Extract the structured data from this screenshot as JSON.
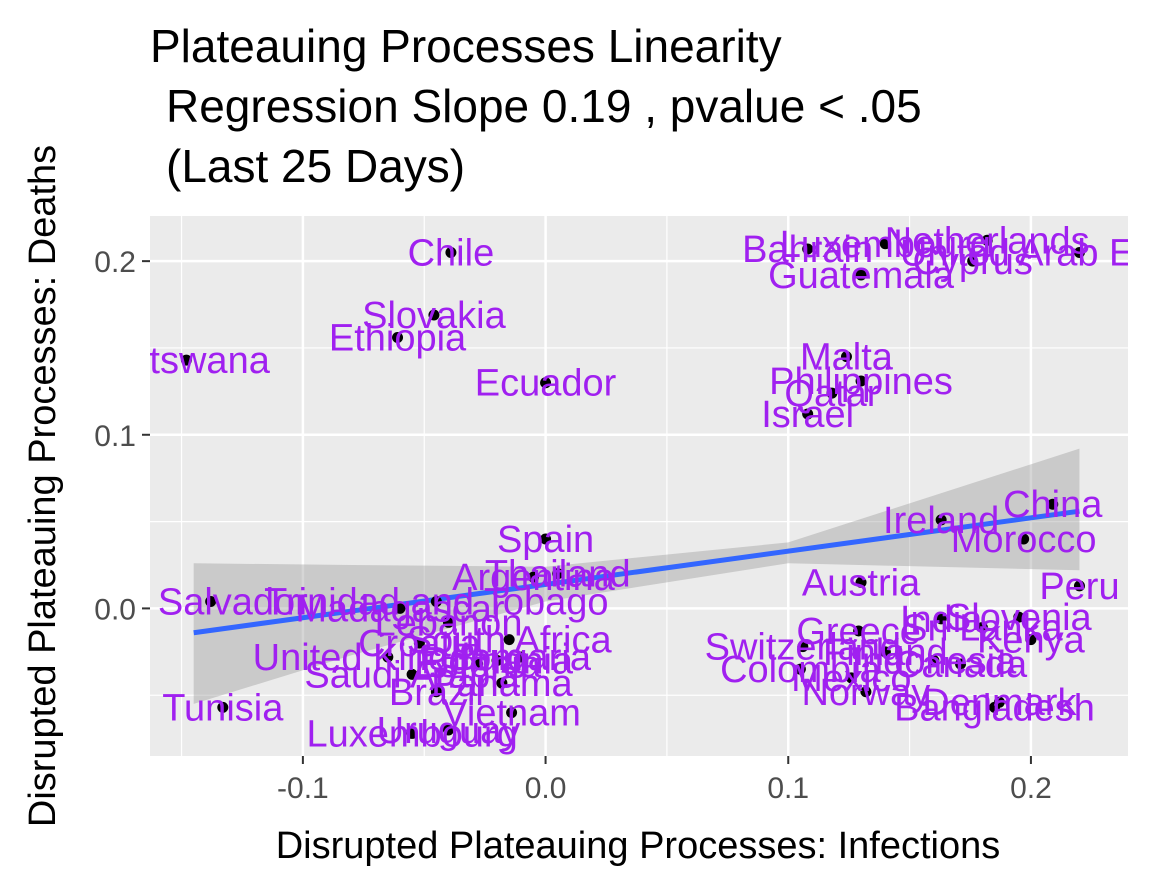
{
  "chart_data": {
    "type": "scatter",
    "title": "Plateauing Processes Linearity",
    "subtitle_lines": [
      "Regression Slope 0.19 , pvalue  < .05",
      "(Last 25 Days)"
    ],
    "xlabel": "Disrupted Plateauing Processes: Infections",
    "ylabel": "Disrupted Plateauing Processes: Deaths",
    "xlim": [
      -0.163,
      0.24
    ],
    "ylim": [
      -0.085,
      0.226
    ],
    "x_ticks": [
      -0.1,
      0.0,
      0.1,
      0.2
    ],
    "x_tick_labels": [
      "-0.1",
      "0.0",
      "0.1",
      "0.2"
    ],
    "y_ticks": [
      0.0,
      0.1,
      0.2
    ],
    "y_tick_labels": [
      "0.0",
      "0.1",
      "0.2"
    ],
    "grid": true,
    "panel_background": "#ebebeb",
    "point_color": "#000000",
    "label_color": "#a020f0",
    "regression": {
      "color": "#3366ff",
      "ci_color": "#999999",
      "points": [
        [
          -0.145,
          -0.014
        ],
        [
          0.22,
          0.056
        ]
      ],
      "ci_upper": [
        [
          -0.145,
          0.026
        ],
        [
          -0.08,
          0.025
        ],
        [
          0.0,
          0.024
        ],
        [
          0.1,
          0.038
        ],
        [
          0.22,
          0.092
        ]
      ],
      "ci_lower": [
        [
          -0.145,
          -0.055
        ],
        [
          -0.08,
          -0.027
        ],
        [
          0.0,
          0.004
        ],
        [
          0.1,
          0.026
        ],
        [
          0.22,
          0.022
        ]
      ]
    },
    "points": [
      {
        "label": "Botswana",
        "x": -0.148,
        "y": 0.143
      },
      {
        "label": "Chile",
        "x": -0.039,
        "y": 0.205
      },
      {
        "label": "Slovakia",
        "x": -0.046,
        "y": 0.169
      },
      {
        "label": "Ethiopia",
        "x": -0.061,
        "y": 0.156
      },
      {
        "label": "Ecuador",
        "x": 0.0,
        "y": 0.13
      },
      {
        "label": "Bahrain",
        "x": 0.108,
        "y": 0.207
      },
      {
        "label": "Netherlands",
        "x": 0.182,
        "y": 0.212
      },
      {
        "label": "Luxembourg",
        "x": 0.14,
        "y": 0.21
      },
      {
        "label": "United Arab Emirates",
        "x": 0.22,
        "y": 0.205
      },
      {
        "label": "Cyprus",
        "x": 0.176,
        "y": 0.2
      },
      {
        "label": "Guatemala",
        "x": 0.13,
        "y": 0.192
      },
      {
        "label": "Malta",
        "x": 0.124,
        "y": 0.145
      },
      {
        "label": "Philippines",
        "x": 0.13,
        "y": 0.131
      },
      {
        "label": "Qatar",
        "x": 0.118,
        "y": 0.124
      },
      {
        "label": "Israel",
        "x": 0.108,
        "y": 0.112
      },
      {
        "label": "China",
        "x": 0.209,
        "y": 0.06
      },
      {
        "label": "Ireland",
        "x": 0.163,
        "y": 0.051
      },
      {
        "label": "Morocco",
        "x": 0.197,
        "y": 0.04
      },
      {
        "label": "Spain",
        "x": 0.0,
        "y": 0.04
      },
      {
        "label": "Peru",
        "x": 0.22,
        "y": 0.013
      },
      {
        "label": "Austria",
        "x": 0.13,
        "y": 0.015
      },
      {
        "label": "India",
        "x": 0.163,
        "y": -0.006
      },
      {
        "label": "Slovenia",
        "x": 0.195,
        "y": -0.005
      },
      {
        "label": "Kenya",
        "x": 0.2,
        "y": -0.018
      },
      {
        "label": "Greece",
        "x": 0.129,
        "y": -0.013
      },
      {
        "label": "Sri Lanka",
        "x": 0.18,
        "y": -0.011
      },
      {
        "label": "Switzerland",
        "x": 0.106,
        "y": -0.022
      },
      {
        "label": "Finland",
        "x": 0.14,
        "y": -0.025
      },
      {
        "label": "Canada",
        "x": 0.171,
        "y": -0.032
      },
      {
        "label": "Indonesia",
        "x": 0.16,
        "y": -0.03
      },
      {
        "label": "Colombia",
        "x": 0.105,
        "y": -0.035
      },
      {
        "label": "Mexico",
        "x": 0.126,
        "y": -0.04
      },
      {
        "label": "Norway",
        "x": 0.132,
        "y": -0.048
      },
      {
        "label": "Denmark",
        "x": 0.187,
        "y": -0.054
      },
      {
        "label": "Bangladesh",
        "x": 0.185,
        "y": -0.057
      },
      {
        "label": "El Salvador",
        "x": -0.138,
        "y": 0.004
      },
      {
        "label": "Trinidad and Tobago",
        "x": -0.045,
        "y": 0.004
      },
      {
        "label": "Argentina",
        "x": -0.005,
        "y": 0.018
      },
      {
        "label": "Thailand",
        "x": 0.005,
        "y": 0.02
      },
      {
        "label": "Madagascar",
        "x": -0.06,
        "y": 0.0
      },
      {
        "label": "Lebanon",
        "x": -0.04,
        "y": -0.008
      },
      {
        "label": "Croatia",
        "x": -0.052,
        "y": -0.02
      },
      {
        "label": "South Africa",
        "x": -0.015,
        "y": -0.018
      },
      {
        "label": "United Kingdom",
        "x": -0.065,
        "y": -0.028
      },
      {
        "label": "Saudi Arabia",
        "x": -0.055,
        "y": -0.038
      },
      {
        "label": "Romania",
        "x": -0.02,
        "y": -0.03
      },
      {
        "label": "Estonia",
        "x": -0.028,
        "y": -0.032
      },
      {
        "label": "Bulgaria",
        "x": -0.01,
        "y": -0.028
      },
      {
        "label": "Panama",
        "x": -0.018,
        "y": -0.043
      },
      {
        "label": "Brazil",
        "x": -0.045,
        "y": -0.048
      },
      {
        "label": "Tunisia",
        "x": -0.133,
        "y": -0.057
      },
      {
        "label": "Vietnam",
        "x": -0.014,
        "y": -0.06
      },
      {
        "label": "Uruguay",
        "x": -0.04,
        "y": -0.07
      },
      {
        "label": "Luxembourg",
        "x": -0.055,
        "y": -0.072
      }
    ]
  }
}
